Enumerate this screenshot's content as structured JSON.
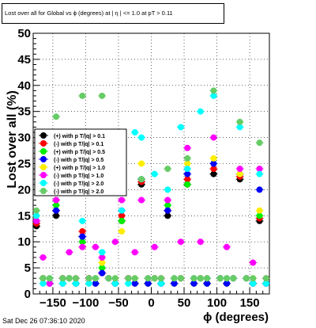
{
  "timestamp": "Sat Dec 26 07:36:10 2020",
  "chart_data": {
    "type": "scatter",
    "title": "Lost over all for Global vs ϕ (degrees) at | η | <= 1.0 at pT > 0.11",
    "xlabel": "ϕ (degrees)",
    "ylabel": "Lost over all (%)",
    "xlim": [
      -180,
      180
    ],
    "ylim": [
      0,
      50
    ],
    "x_ticks": [
      -150,
      -100,
      -50,
      0,
      50,
      100,
      150
    ],
    "x_tick_labels": [
      "−150",
      "−100",
      "−50",
      "0",
      "50",
      "100",
      "150"
    ],
    "y_ticks": [
      0,
      5,
      10,
      15,
      20,
      25,
      30,
      35,
      40,
      45,
      50
    ],
    "grid": true,
    "legend_position": "left-middle",
    "x": [
      -175,
      -165,
      -155,
      -145,
      -135,
      -125,
      -115,
      -105,
      -95,
      -85,
      -75,
      -65,
      -55,
      -45,
      -35,
      -25,
      -15,
      -5,
      5,
      15,
      25,
      35,
      45,
      55,
      65,
      75,
      85,
      95,
      105,
      115,
      125,
      135,
      145,
      155,
      165,
      175
    ],
    "series": [
      {
        "name": "(+) with p T/|q| > 0.1",
        "color": "#000000",
        "values": [
          13,
          3,
          2,
          15,
          2,
          3,
          2,
          11,
          3,
          2,
          4,
          3,
          2,
          14,
          3,
          2,
          21,
          2,
          3,
          2,
          15,
          2,
          3,
          21,
          2,
          3,
          2,
          23,
          3,
          2,
          3,
          22,
          3,
          2,
          14,
          2
        ]
      },
      {
        "name": "(-) with p T/|q| > 0.1",
        "color": "#ff0000",
        "values": [
          13.5,
          3,
          2,
          16,
          3,
          3,
          2,
          12,
          3,
          2,
          4,
          3,
          2,
          15,
          3,
          2,
          21.5,
          2,
          3,
          2,
          16,
          2,
          3,
          22,
          2,
          3,
          2,
          24,
          3,
          2,
          3,
          22.5,
          3,
          2,
          14.5,
          2
        ]
      },
      {
        "name": "(+) with p T/|q| > 0.5",
        "color": "#00ee00",
        "values": [
          14,
          3,
          2,
          17,
          3,
          3,
          2,
          10,
          3,
          2,
          5,
          3,
          2,
          14,
          3,
          2,
          22,
          2,
          3,
          2,
          17,
          2,
          3,
          21,
          2,
          3,
          2,
          25,
          3,
          2,
          3,
          23,
          3,
          2,
          15,
          2
        ]
      },
      {
        "name": "(-) with p T/|q| > 0.5",
        "color": "#0000ff",
        "values": [
          14,
          3,
          2,
          16,
          3,
          3,
          2,
          11,
          3,
          2,
          4,
          3,
          2,
          16,
          3,
          2,
          22,
          2,
          3,
          2,
          16,
          2,
          3,
          23,
          2,
          3,
          2,
          25,
          3,
          2,
          3,
          23,
          3,
          2,
          20,
          2
        ]
      },
      {
        "name": "(+) with p T/|q| > 1.0",
        "color": "#ffee00",
        "values": [
          15,
          3,
          3,
          18,
          3,
          3,
          3,
          9,
          3,
          3,
          6,
          3,
          3,
          12,
          3,
          3,
          25,
          3,
          3,
          3,
          20,
          3,
          3,
          25,
          3,
          3,
          3,
          26,
          3,
          3,
          3,
          23,
          3,
          3,
          16,
          3
        ]
      },
      {
        "name": "(-) with p T/|q| > 1.0",
        "color": "#ff00ff",
        "values": [
          14,
          7,
          2,
          18,
          3,
          8,
          3,
          9,
          3,
          9,
          7,
          3,
          10,
          18,
          3,
          8,
          18,
          3,
          9,
          3,
          18,
          3,
          10,
          28,
          3,
          10,
          3,
          30,
          3,
          9,
          3,
          24,
          3,
          6,
          24,
          3
        ]
      },
      {
        "name": "(-) with p T/|q| > 2.0",
        "color": "#00ffff",
        "values": [
          15,
          2,
          3,
          20,
          2,
          3,
          2,
          14,
          2,
          3,
          8,
          3,
          2,
          16,
          2,
          31,
          30,
          3,
          23,
          2,
          20,
          3,
          32,
          24,
          3,
          35,
          3,
          38,
          3,
          3,
          3,
          32,
          3,
          2,
          23,
          2
        ]
      },
      {
        "name": "(-) with p T/|q| > 2.0",
        "color": "#66cc66",
        "values": [
          16,
          3,
          3,
          34,
          3,
          3,
          3,
          38,
          3,
          3,
          38,
          3,
          3,
          30,
          3,
          3,
          22,
          3,
          3,
          3,
          24,
          3,
          3,
          26,
          3,
          3,
          3,
          39,
          3,
          3,
          3,
          33,
          3,
          3,
          29,
          3
        ]
      }
    ]
  }
}
